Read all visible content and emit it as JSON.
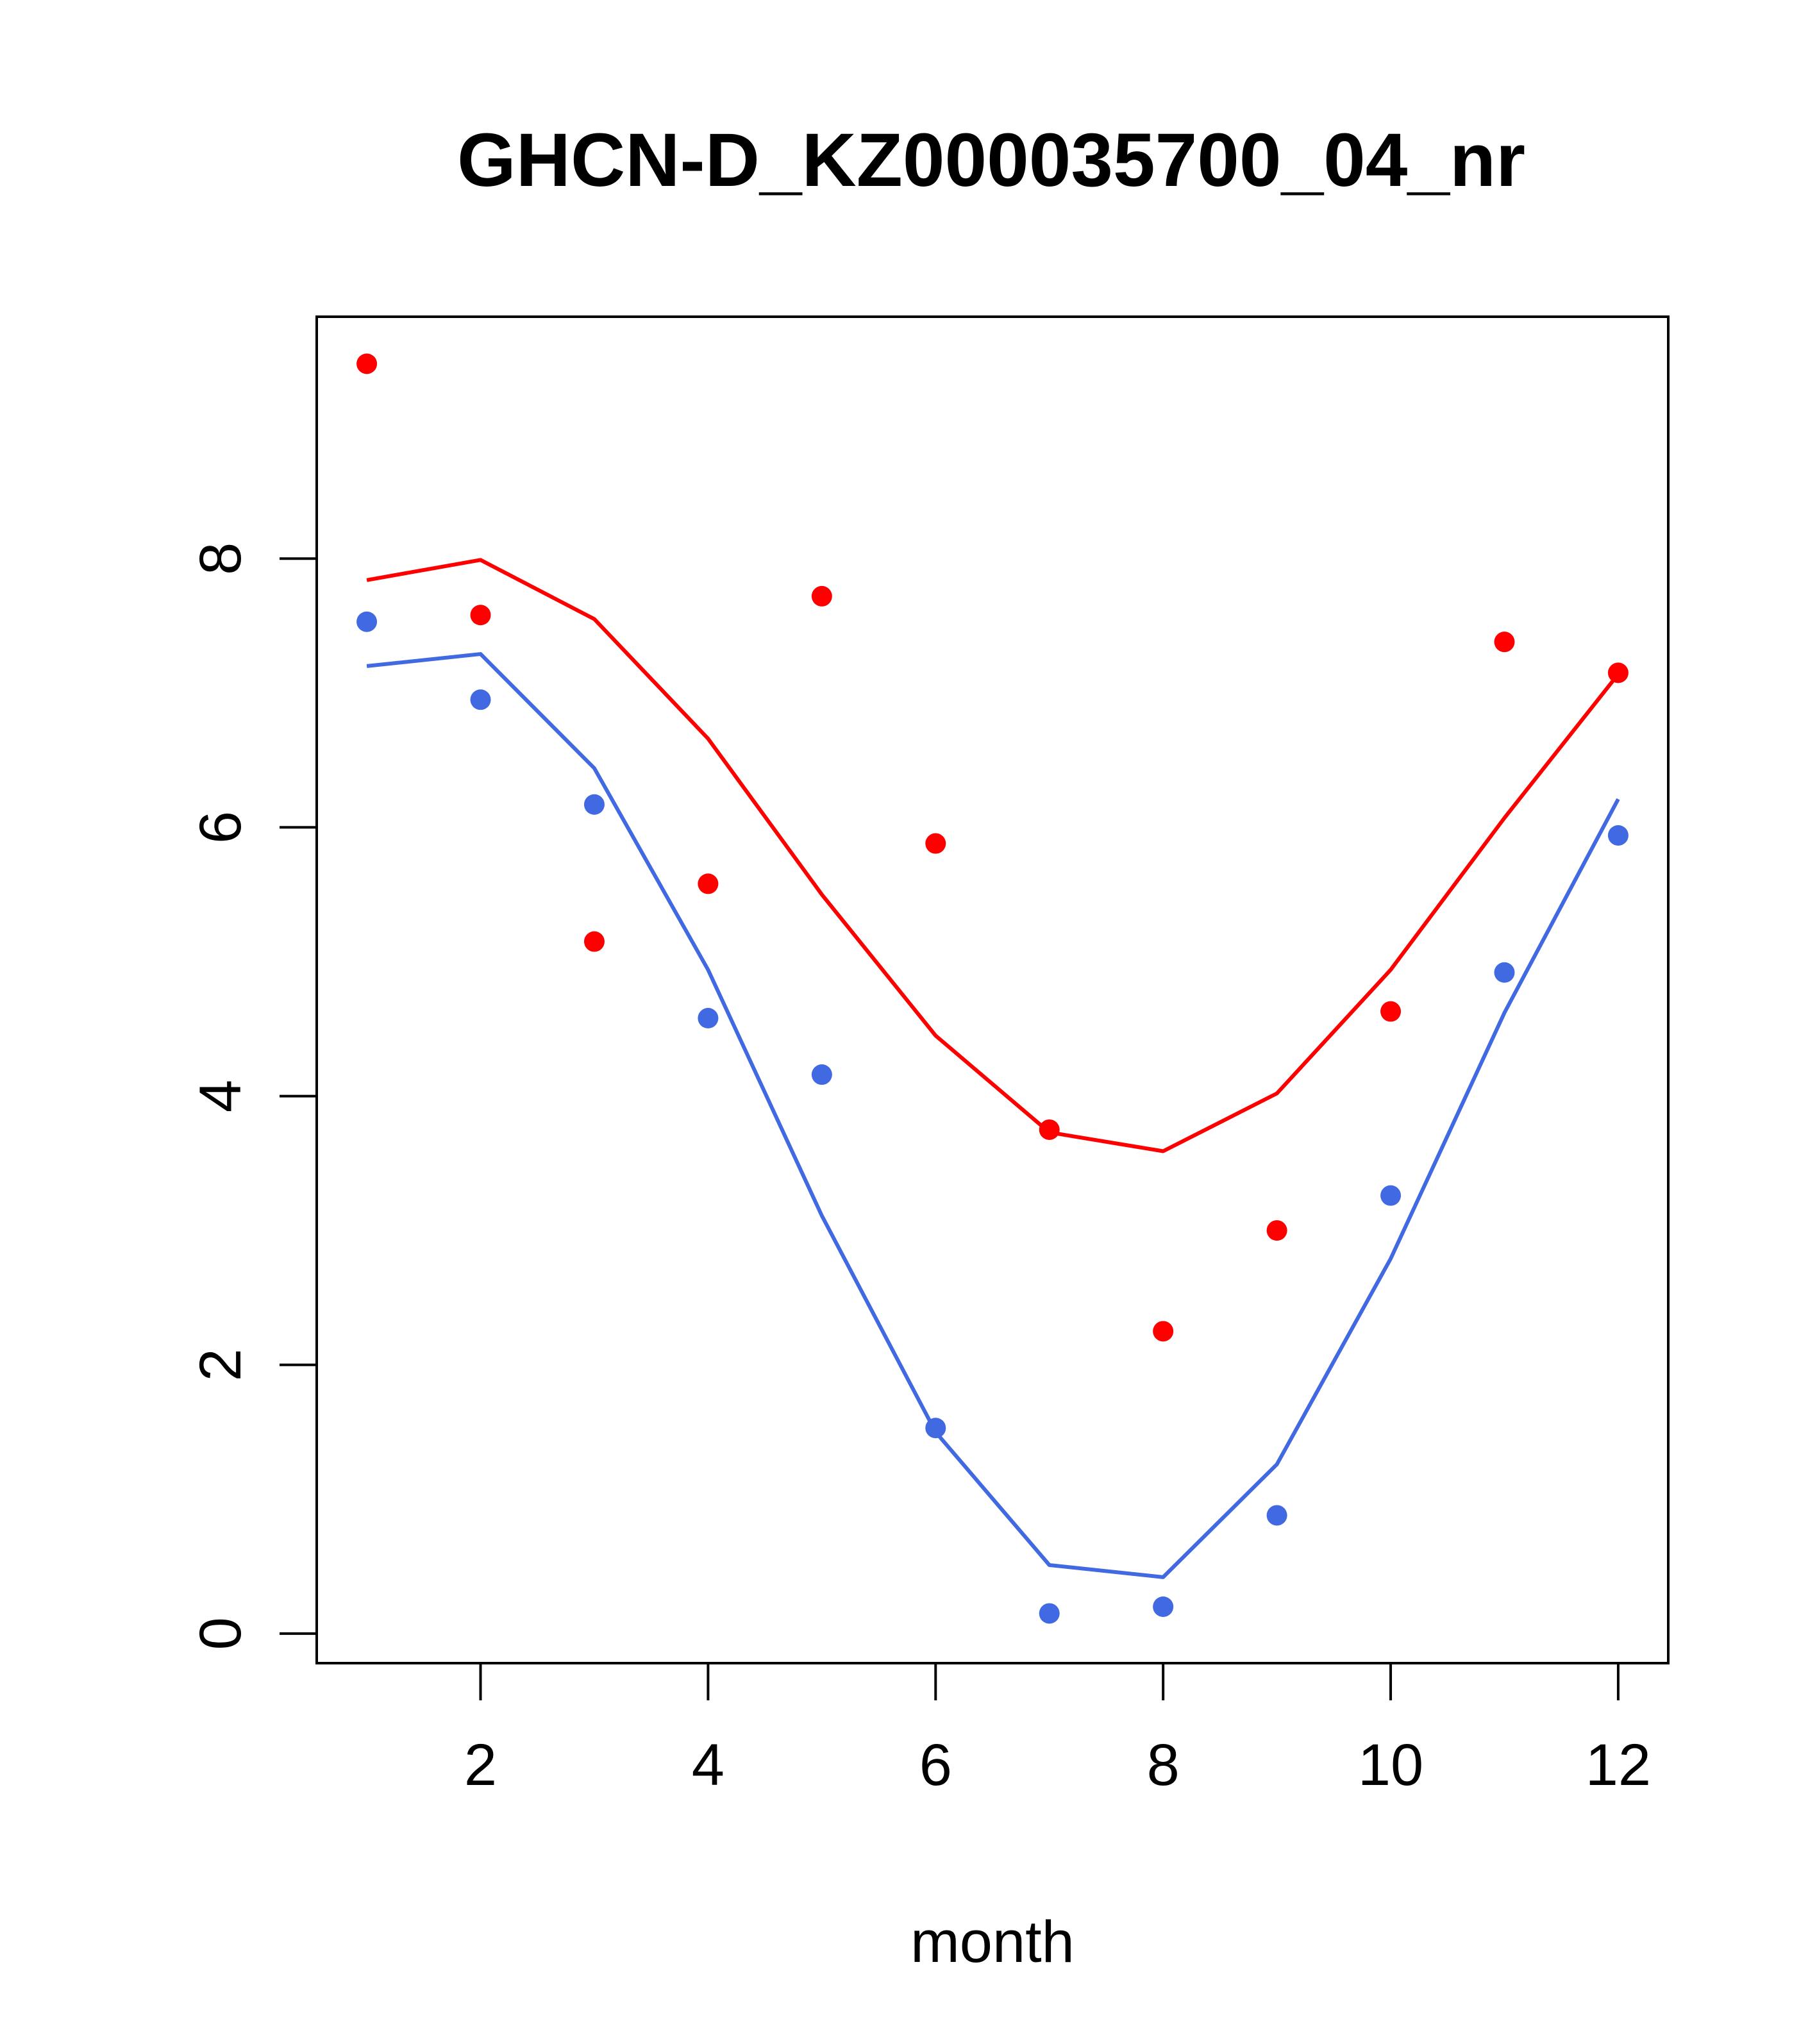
{
  "chart_data": {
    "type": "scatter",
    "title": "GHCN-D_KZ000035700_04_nr",
    "xlabel": "month",
    "ylabel": "",
    "xlim": [
      0.56,
      12.44
    ],
    "ylim": [
      -0.22,
      9.8
    ],
    "x_ticks": [
      2,
      4,
      6,
      8,
      10,
      12
    ],
    "y_ticks": [
      0,
      2,
      4,
      6,
      8
    ],
    "grid": false,
    "legend": "none",
    "x": [
      1,
      2,
      3,
      4,
      5,
      6,
      7,
      8,
      9,
      10,
      11,
      12
    ],
    "series": [
      {
        "color": "#ff0000",
        "points": [
          9.45,
          7.58,
          5.15,
          5.58,
          7.72,
          5.88,
          3.75,
          2.25,
          3.0,
          4.63,
          7.38,
          7.15
        ],
        "line": [
          7.84,
          7.99,
          7.55,
          6.66,
          5.5,
          4.45,
          3.73,
          3.59,
          4.02,
          4.94,
          6.07,
          7.14
        ]
      },
      {
        "color": "#4169e1",
        "points": [
          7.53,
          6.95,
          6.17,
          4.58,
          4.16,
          1.53,
          0.15,
          0.2,
          0.88,
          3.26,
          4.92,
          5.94
        ],
        "line": [
          7.2,
          7.29,
          6.44,
          4.94,
          3.11,
          1.5,
          0.51,
          0.42,
          1.26,
          2.79,
          4.62,
          6.21
        ]
      }
    ]
  }
}
